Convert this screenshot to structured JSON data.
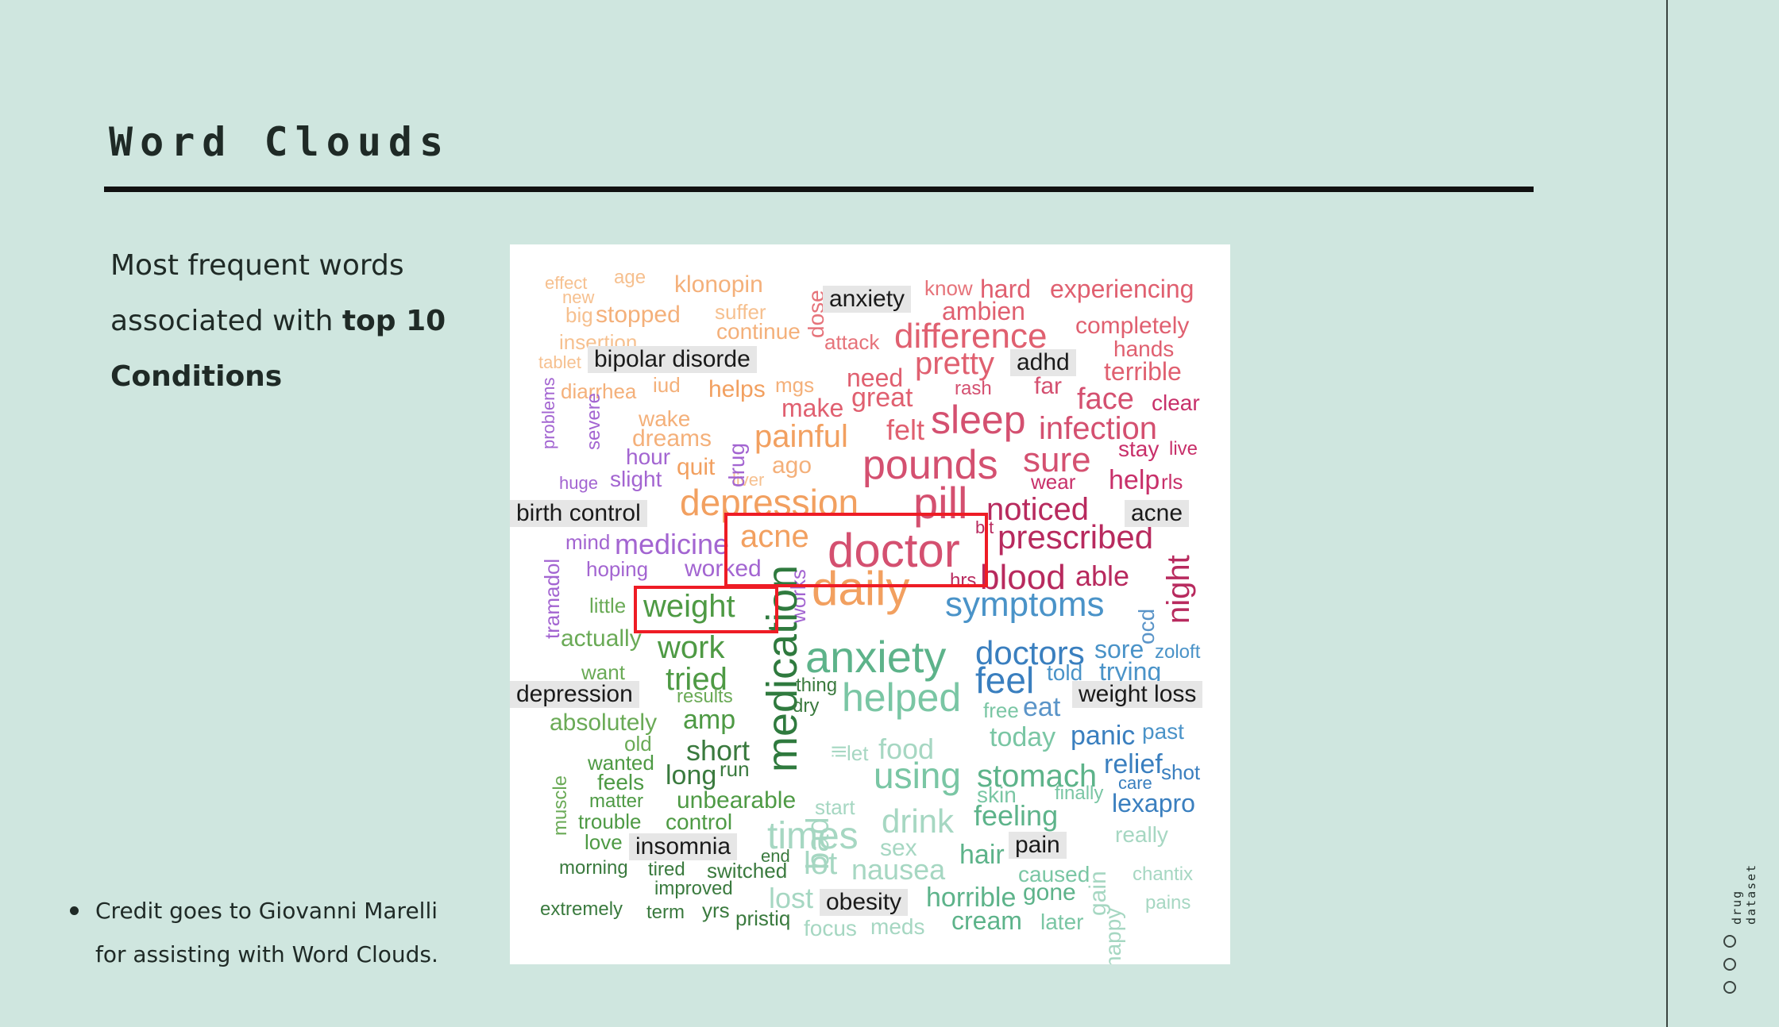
{
  "title": "Word Clouds",
  "intro": {
    "line1": "Most frequent words",
    "line2": "associated with ",
    "bold1": "top 10",
    "bold2": "Conditions"
  },
  "credit": {
    "line1": "Credit goes to Giovanni Marelli",
    "line2": "for assisting with Word Clouds."
  },
  "side_label": "drug dataset",
  "condition_labels": [
    "anxiety",
    "bipolar disorde",
    "adhd",
    "birth control",
    "acne",
    "depression",
    "weight loss",
    "insomnia",
    "pain",
    "obesity"
  ],
  "cloud_words": [
    "effect",
    "age",
    "klonopin",
    "new",
    "big",
    "stopped",
    "suffer",
    "continue",
    "insertion",
    "tablet",
    "diarrhea",
    "iud",
    "helps",
    "mgs",
    "wake",
    "dreams",
    "quit",
    "ago",
    "hour",
    "slight",
    "liver",
    "huge",
    "problems",
    "severe",
    "drug",
    "painful",
    "dose",
    "know",
    "hard",
    "experiencing",
    "ambien",
    "attack",
    "difference",
    "completely",
    "hands",
    "terrible",
    "need",
    "great",
    "pretty",
    "rash",
    "far",
    "face",
    "clear",
    "make",
    "felt",
    "sleep",
    "infection",
    "stay",
    "live",
    "pounds",
    "sure",
    "wear",
    "help",
    "rls",
    "depression",
    "pill",
    "noticed",
    "bit",
    "prescribed",
    "mind",
    "medicine",
    "hoping",
    "worked",
    "acne",
    "doctor",
    "daily",
    "hrs",
    "blood",
    "able",
    "night",
    "ocd",
    "tramadol",
    "works",
    "little",
    "weight",
    "symptoms",
    "actually",
    "work",
    "anxiety",
    "doctors",
    "sore",
    "zoloft",
    "want",
    "tried",
    "results",
    "thing",
    "dry",
    "helped",
    "feel",
    "told",
    "trying",
    "absolutely",
    "amp",
    "medication",
    "free",
    "eat",
    "today",
    "panic",
    "past",
    "muscle",
    "old",
    "wanted",
    "feels",
    "matter",
    "short",
    "long",
    "run",
    "bad",
    "let",
    "food",
    "using",
    "stomach",
    "relief",
    "shot",
    "care",
    "skin",
    "finally",
    "lexapro",
    "unbearable",
    "start",
    "trouble",
    "control",
    "love",
    "drink",
    "feeling",
    "gain",
    "really",
    "times",
    "sex",
    "hair",
    "morning",
    "tired",
    "switched",
    "end",
    "lot",
    "nausea",
    "caused",
    "happy",
    "chantix",
    "improved",
    "lost",
    "extremely",
    "term",
    "yrs",
    "pristiq",
    "focus",
    "meds",
    "horrible",
    "gone",
    "cream",
    "later",
    "pains",
    "ill"
  ],
  "colors": {
    "background": "#cfe6df",
    "highlight": "#ee1c25"
  }
}
